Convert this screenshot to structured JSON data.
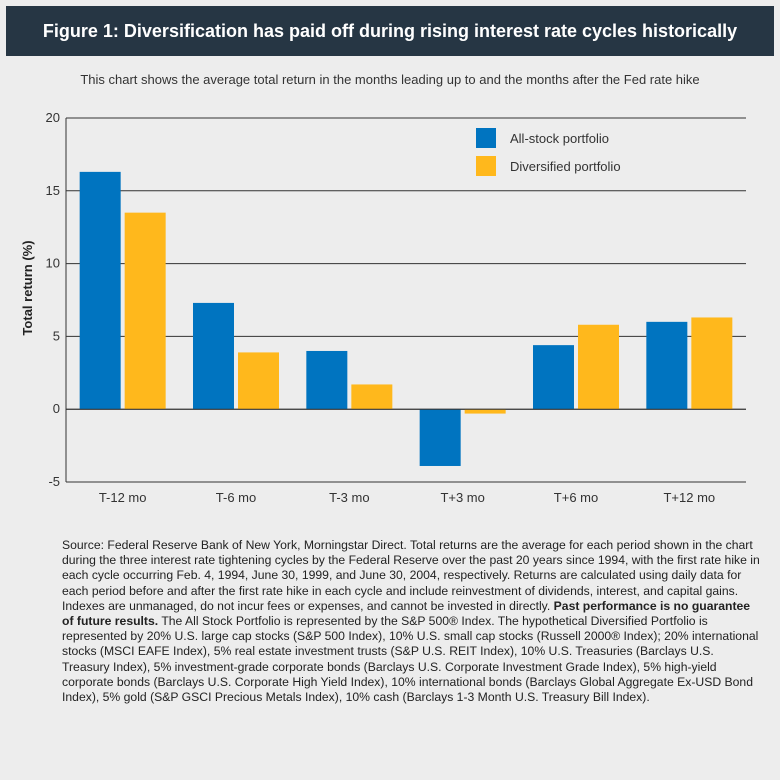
{
  "header": {
    "title": "Figure 1: Diversification has paid off during rising interest rate cycles historically",
    "subtitle": "This chart shows the average total return in the months leading up to and the months after the Fed rate hike"
  },
  "chart_data": {
    "type": "bar",
    "categories": [
      "T-12 mo",
      "T-6 mo",
      "T-3 mo",
      "T+3 mo",
      "T+6 mo",
      "T+12 mo"
    ],
    "series": [
      {
        "name": "All-stock portfolio",
        "color": "#0074c0",
        "values": [
          16.3,
          7.3,
          4.0,
          -3.9,
          4.4,
          6.0
        ]
      },
      {
        "name": "Diversified portfolio",
        "color": "#ffb81c",
        "values": [
          13.5,
          3.9,
          1.7,
          -0.3,
          5.8,
          6.3
        ]
      }
    ],
    "ylabel": "Total return (%)",
    "xlabel": "",
    "ylim": [
      -5,
      20
    ],
    "yticks": [
      -5,
      0,
      5,
      10,
      15,
      20
    ],
    "grid": true,
    "legend": "top-right"
  },
  "source": {
    "text": "Source: Federal Reserve Bank of New York, Morningstar Direct. Total returns are the average for each period shown in the chart during the three interest rate tightening cycles by the Federal Reserve over the past 20 years since 1994, with the first rate hike in each cycle occurring Feb. 4, 1994,  June 30, 1999, and June 30, 2004, respectively. Returns are calculated using daily data for each period before and after the first rate hike in each cycle and include reinvestment of dividends, interest, and capital gains. Indexes are unmanaged, do not incur fees or expenses, and cannot be invested in directly. ",
    "bold": "Past performance is no guarantee of future results.",
    "text2": " The All Stock Portfolio is represented by the S&P 500® Index. The hypothetical Diversified Portfolio is represented by 20% U.S. large cap stocks (S&P 500 Index), 10% U.S. small cap stocks (Russell 2000® Index); 20% international stocks (MSCI EAFE Index), 5% real estate investment trusts (S&P U.S. REIT Index), 10% U.S. Treasuries (Barclays U.S. Treasury Index), 5% investment-grade corporate bonds (Barclays U.S.  Corporate Investment Grade Index), 5% high-yield corporate bonds (Barclays U.S. Corporate High Yield Index), 10% international bonds (Barclays Global Aggregate Ex-USD Bond Index), 5% gold (S&P GSCI Precious Metals Index), 10% cash (Barclays 1-3 Month U.S. Treasury Bill Index)."
  }
}
